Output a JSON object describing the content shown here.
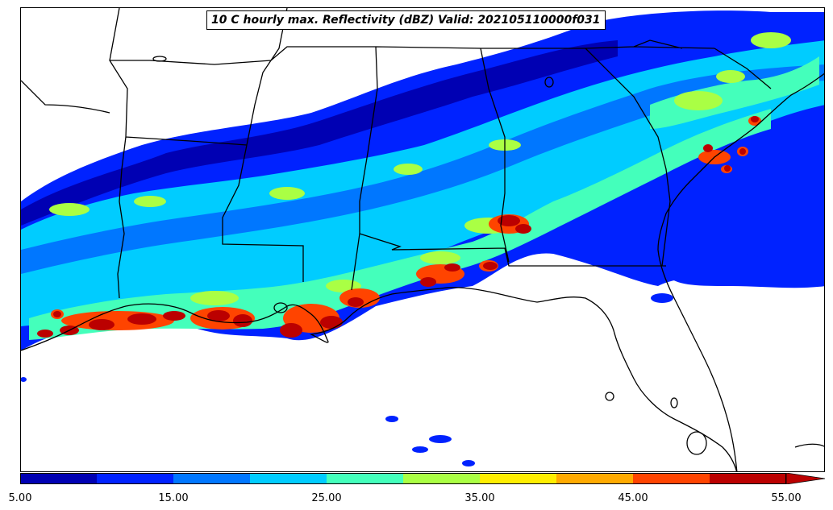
{
  "title": "10 C hourly max. Reflectivity (dBZ) Valid: 202105110000f031",
  "colorbar": {
    "colors": [
      "#0000b3",
      "#0022ff",
      "#0077ff",
      "#00ccff",
      "#44ffbb",
      "#aaff44",
      "#ffee00",
      "#ffaa00",
      "#ff4400",
      "#bb0000"
    ],
    "extend_color": "#bb0000",
    "tick_labels": [
      "5.00",
      "15.00",
      "25.00",
      "35.00",
      "45.00",
      "55.00"
    ],
    "min": 5,
    "max": 55,
    "step": 5
  },
  "map": {
    "field": "hourly max reflectivity at 10 C",
    "units": "dBZ",
    "region": "Southeastern United States"
  }
}
